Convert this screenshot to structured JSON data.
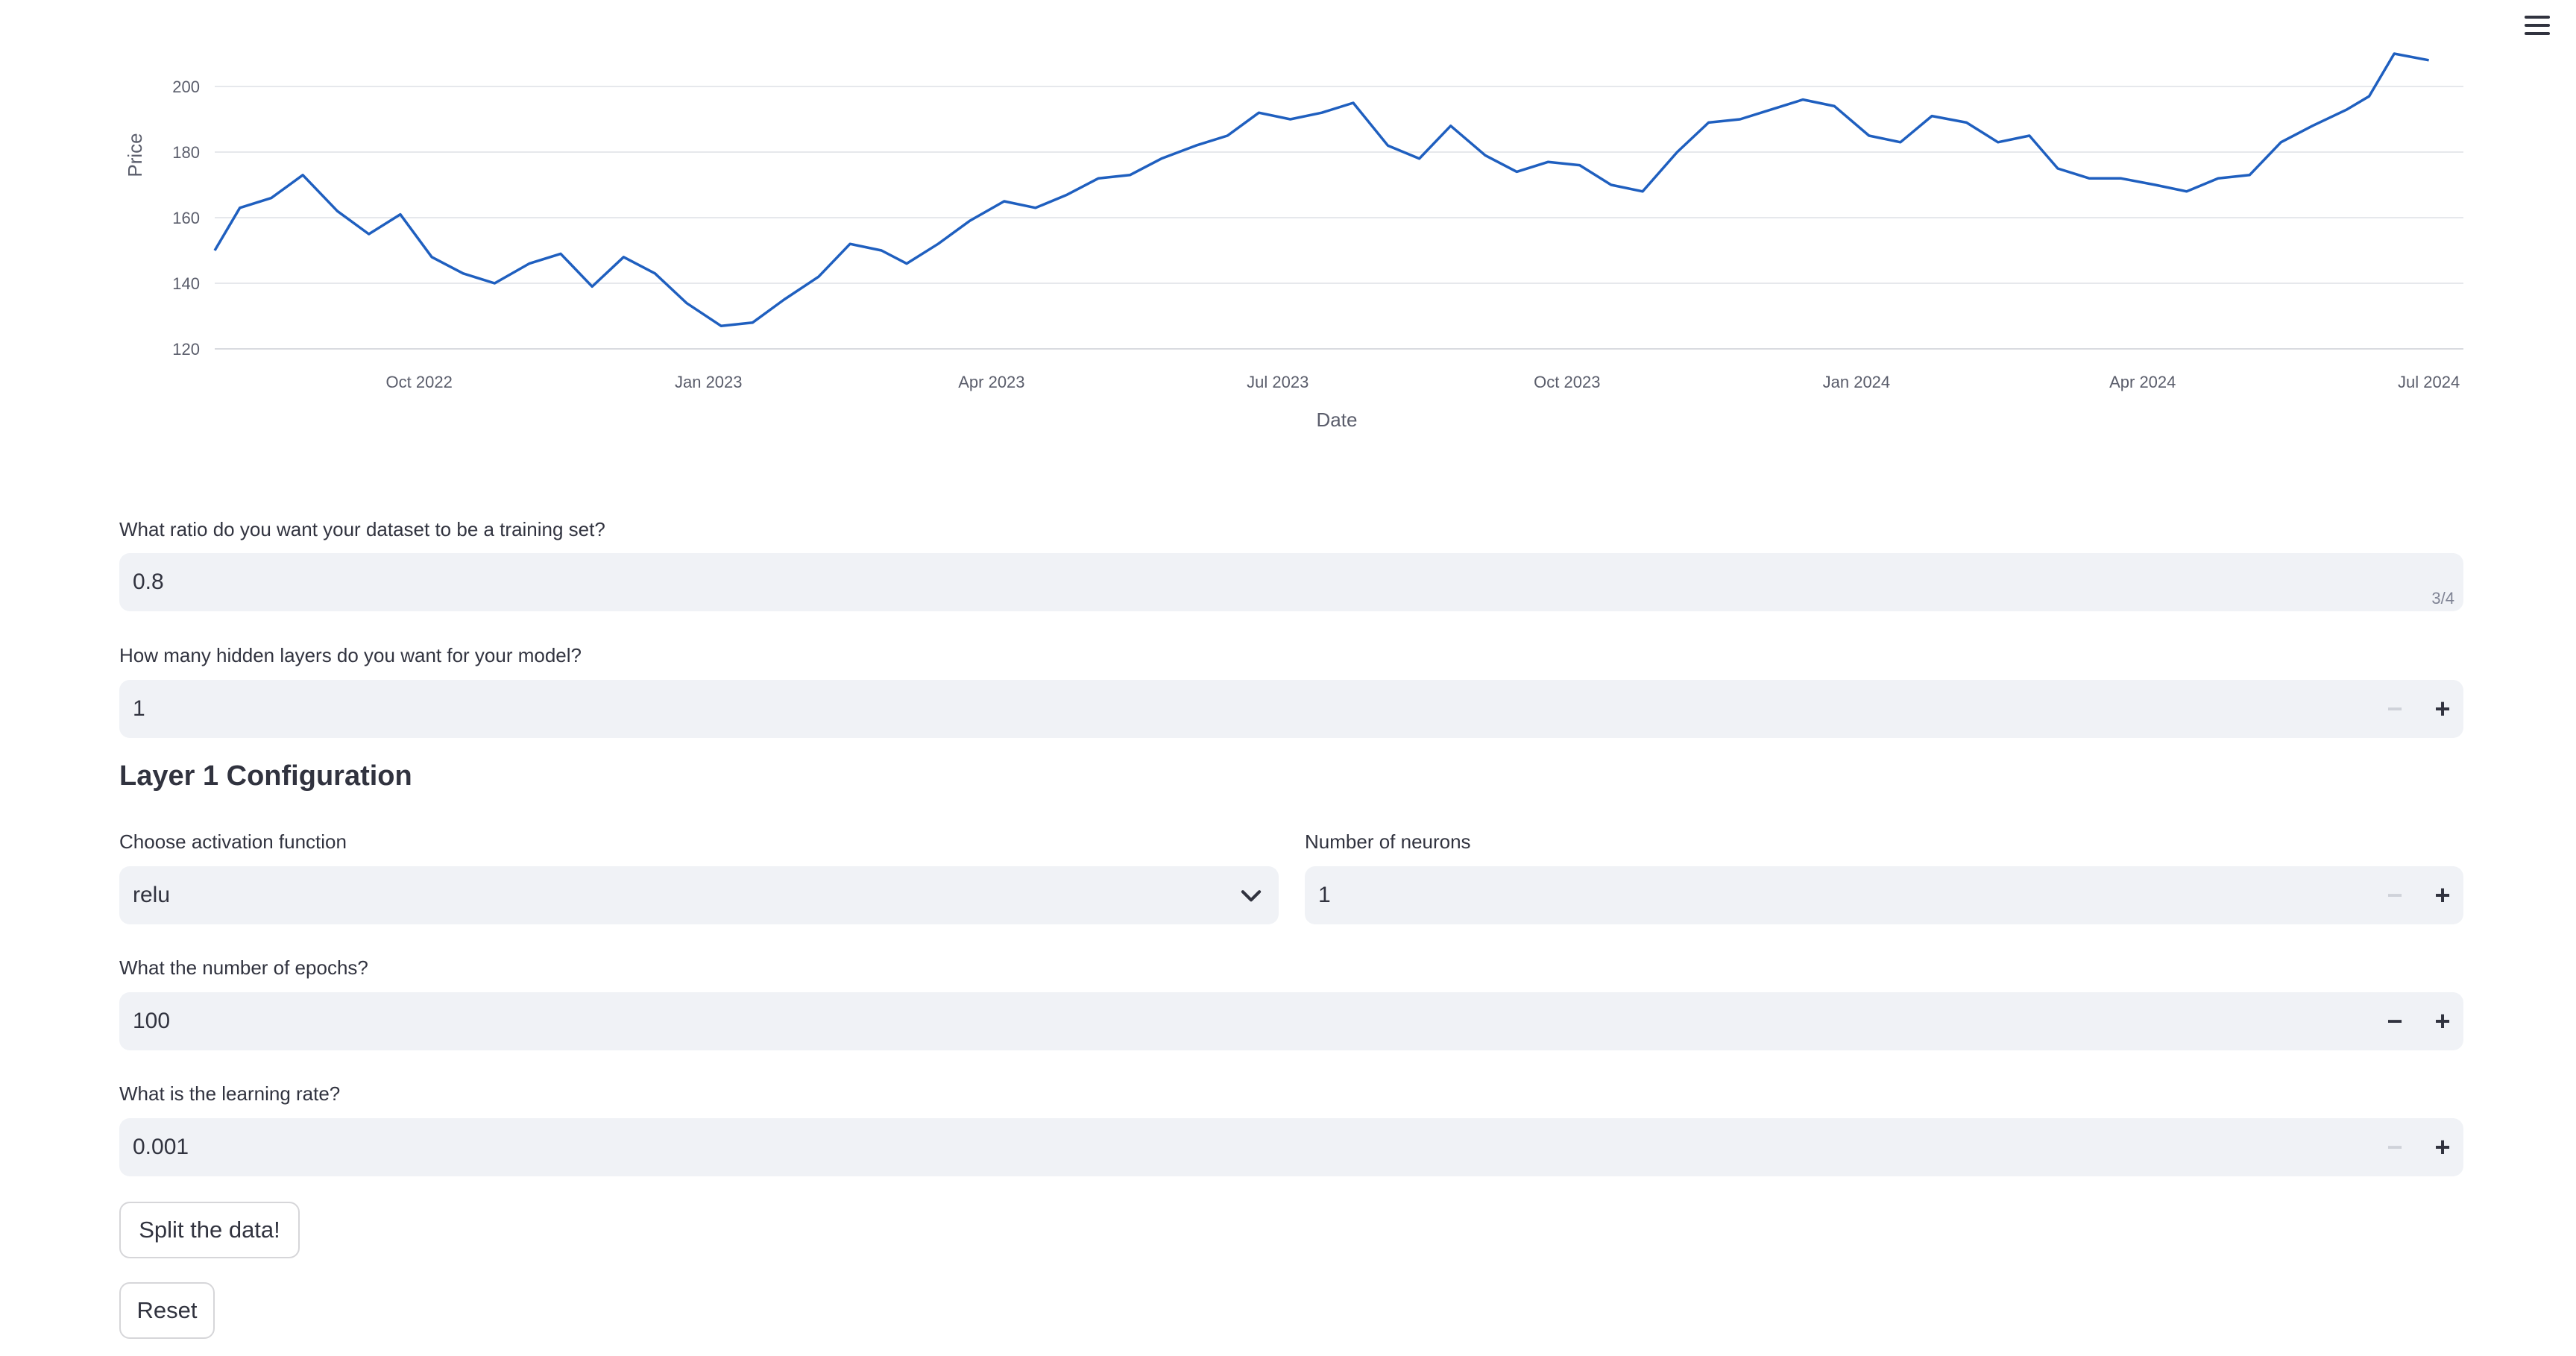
{
  "chart_data": {
    "type": "line",
    "xlabel": "Date",
    "ylabel": "Price",
    "x_ticks": [
      "Oct 2022",
      "Jan 2023",
      "Apr 2023",
      "Jul 2023",
      "Oct 2023",
      "Jan 2024",
      "Apr 2024",
      "Jul 2024"
    ],
    "y_ticks": [
      120,
      140,
      160,
      180,
      200
    ],
    "ylim": [
      120,
      210
    ],
    "xlim": [
      "2022-07-28",
      "2024-07-12"
    ],
    "grid": true,
    "color": "#1f5fbf",
    "series": [
      {
        "x": [
          "2022-07-28",
          "2022-08-05",
          "2022-08-15",
          "2022-08-25",
          "2022-09-05",
          "2022-09-15",
          "2022-09-25",
          "2022-10-05",
          "2022-10-15",
          "2022-10-25",
          "2022-11-05",
          "2022-11-15",
          "2022-11-25",
          "2022-12-05",
          "2022-12-15",
          "2022-12-25",
          "2023-01-05",
          "2023-01-15",
          "2023-01-25",
          "2023-02-05",
          "2023-02-15",
          "2023-02-25",
          "2023-03-05",
          "2023-03-15",
          "2023-03-25",
          "2023-04-05",
          "2023-04-15",
          "2023-04-25",
          "2023-05-05",
          "2023-05-15",
          "2023-05-25",
          "2023-06-05",
          "2023-06-15",
          "2023-06-25",
          "2023-07-05",
          "2023-07-15",
          "2023-07-25",
          "2023-08-05",
          "2023-08-15",
          "2023-08-25",
          "2023-09-05",
          "2023-09-15",
          "2023-09-25",
          "2023-10-05",
          "2023-10-15",
          "2023-10-25",
          "2023-11-05",
          "2023-11-15",
          "2023-11-25",
          "2023-12-05",
          "2023-12-15",
          "2023-12-25",
          "2024-01-05",
          "2024-01-15",
          "2024-01-25",
          "2024-02-05",
          "2024-02-15",
          "2024-02-25",
          "2024-03-05",
          "2024-03-15",
          "2024-03-25",
          "2024-04-05",
          "2024-04-15",
          "2024-04-25",
          "2024-05-05",
          "2024-05-15",
          "2024-05-25",
          "2024-06-05",
          "2024-06-12",
          "2024-06-20",
          "2024-07-01"
        ],
        "y": [
          150,
          163,
          166,
          173,
          162,
          155,
          161,
          148,
          143,
          140,
          146,
          149,
          139,
          148,
          143,
          134,
          127,
          128,
          135,
          142,
          152,
          150,
          146,
          152,
          159,
          165,
          163,
          167,
          172,
          173,
          178,
          182,
          185,
          192,
          190,
          192,
          195,
          182,
          178,
          188,
          179,
          174,
          177,
          176,
          170,
          168,
          180,
          189,
          190,
          193,
          196,
          194,
          185,
          183,
          191,
          189,
          183,
          185,
          175,
          172,
          172,
          170,
          168,
          172,
          173,
          183,
          188,
          193,
          197,
          212,
          208
        ]
      }
    ]
  },
  "fields": {
    "ratio": {
      "label": "What ratio do you want your dataset to be a training set?",
      "value": "0.8",
      "counter": "3/4"
    },
    "hidden_layers": {
      "label": "How many hidden layers do you want for your model?",
      "value": "1"
    },
    "layer_heading": "Layer 1 Configuration",
    "activation": {
      "label": "Choose activation function",
      "value": "relu"
    },
    "neurons": {
      "label": "Number of neurons",
      "value": "1"
    },
    "epochs": {
      "label": "What the number of epochs?",
      "value": "100"
    },
    "learning_rate": {
      "label": "What is the learning rate?",
      "value": "0.001"
    }
  },
  "buttons": {
    "split": "Split the data!",
    "reset": "Reset"
  },
  "stepper": {
    "minus": "−",
    "plus": "+"
  },
  "icons": {
    "menu": "menu-icon",
    "chevron": "chevron-down-icon"
  }
}
